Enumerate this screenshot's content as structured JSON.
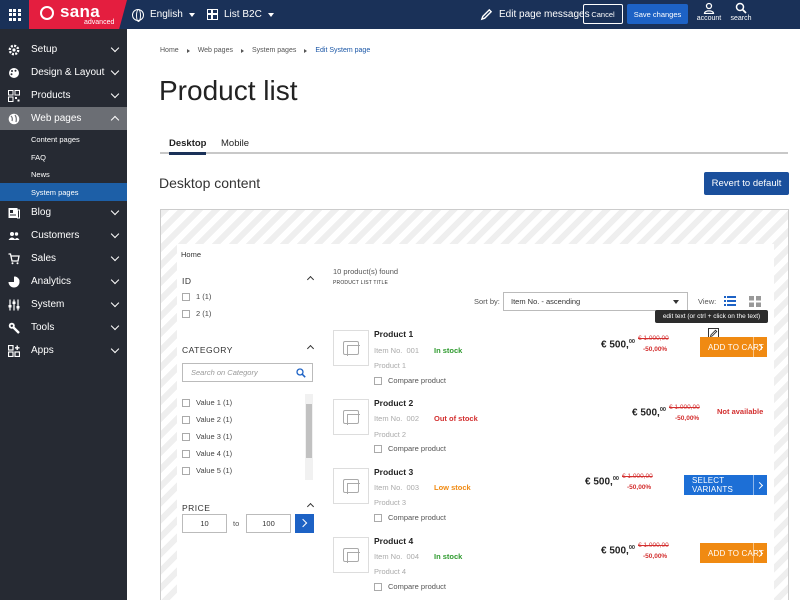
{
  "brand": {
    "name": "sana",
    "edition": "advanced",
    "color": "#e41e3f"
  },
  "topbar": {
    "language": "English",
    "list": "List B2C",
    "edit_messages": "Edit page messages",
    "cancel": "Cancel",
    "save": "Save changes",
    "account": "account",
    "search": "search"
  },
  "sidebar": {
    "items": [
      {
        "label": "Setup",
        "icon": "gear-icon"
      },
      {
        "label": "Design & Layout",
        "icon": "palette-icon"
      },
      {
        "label": "Products",
        "icon": "qr-icon"
      },
      {
        "label": "Web pages",
        "icon": "globe-icon"
      },
      {
        "label": "Blog",
        "icon": "newspaper-icon"
      },
      {
        "label": "Customers",
        "icon": "people-icon"
      },
      {
        "label": "Sales",
        "icon": "cart-icon"
      },
      {
        "label": "Analytics",
        "icon": "chart-icon"
      },
      {
        "label": "System",
        "icon": "sliders-icon"
      },
      {
        "label": "Tools",
        "icon": "wrench-icon"
      },
      {
        "label": "Apps",
        "icon": "apps-icon"
      }
    ],
    "sub_items": [
      "Content pages",
      "FAQ",
      "News",
      "System pages"
    ]
  },
  "breadcrumb": [
    "Home",
    "Web pages",
    "System pages",
    "Edit System page"
  ],
  "page_title": "Product list",
  "tabs": [
    "Desktop",
    "Mobile"
  ],
  "section_title": "Desktop content",
  "revert_button": "Revert to default",
  "preview": {
    "breadcrumb": "Home",
    "facets": {
      "id_title": "ID",
      "id_values": [
        "1 (1)",
        "2 (1)"
      ],
      "category_title": "CATEGORY",
      "category_placeholder": "Search on Category",
      "category_values": [
        "Value 1 (1)",
        "Value 2 (1)",
        "Value 3 (1)",
        "Value 4 (1)",
        "Value 5 (1)"
      ],
      "price_title": "PRICE",
      "price_from": "10",
      "price_to_label": "to",
      "price_to": "100"
    },
    "found": "10 product(s) found",
    "list_title": "PRODUCT LIST TITLE",
    "sort_label": "Sort by:",
    "sort_value": "Item No. - ascending",
    "view_label": "View:",
    "tooltip": "edit text (or ctrl + click on the text)",
    "item_no_label": "Item No.",
    "compare_label": "Compare product",
    "products": [
      {
        "name": "Product 1",
        "item_no": "001",
        "stock": "In stock",
        "stock_color": "#2e9a2e",
        "subtitle": "Product 1",
        "price": "€ 500,",
        "price_cents": "00",
        "old_price": "€ 1.000,00",
        "discount": "-50,00%",
        "action": "ADD TO CART"
      },
      {
        "name": "Product 2",
        "item_no": "002",
        "stock": "Out of stock",
        "stock_color": "#d32f2f",
        "subtitle": "Product 2",
        "price": "€ 500,",
        "price_cents": "00",
        "old_price": "€ 1.000,00",
        "discount": "-50,00%",
        "action": "Not available"
      },
      {
        "name": "Product 3",
        "item_no": "003",
        "stock": "Low stock",
        "stock_color": "#f08a12",
        "subtitle": "Product 3",
        "price": "€ 500,",
        "price_cents": "00",
        "old_price": "€ 1.000,00",
        "discount": "-50,00%",
        "action": "SELECT VARIANTS"
      },
      {
        "name": "Product 4",
        "item_no": "004",
        "stock": "In stock",
        "stock_color": "#2e9a2e",
        "subtitle": "Product 4",
        "price": "€ 500,",
        "price_cents": "00",
        "old_price": "€ 1.000,00",
        "discount": "-50,00%",
        "action": "ADD TO CART"
      }
    ]
  }
}
